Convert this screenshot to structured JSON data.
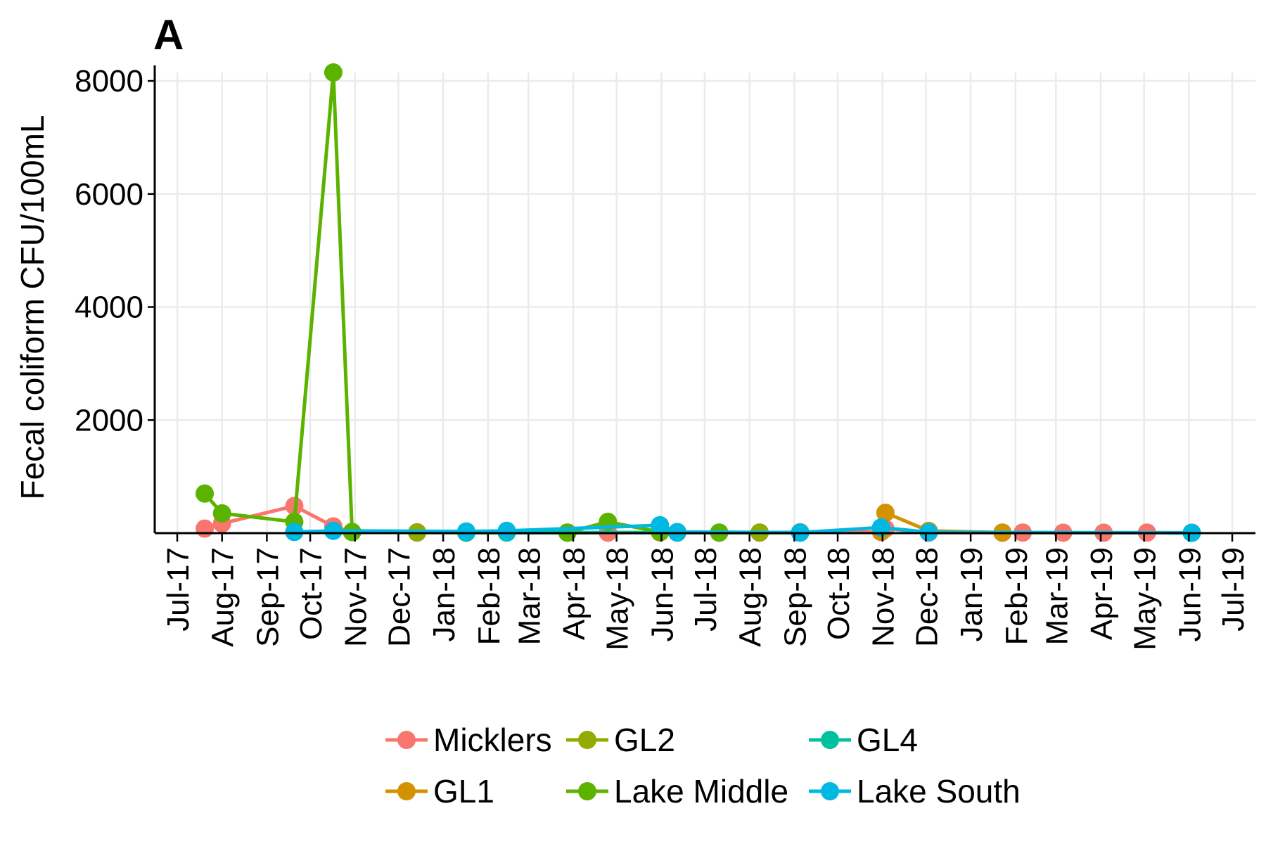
{
  "panel_label": "A",
  "chart_data": {
    "type": "line",
    "title": "",
    "xlabel": "",
    "ylabel": "Fecal coliform CFU/100mL",
    "x_ticks": [
      "Jul-17",
      "Aug-17",
      "Sep-17",
      "Oct-17",
      "Nov-17",
      "Dec-17",
      "Jan-18",
      "Feb-18",
      "Mar-18",
      "Apr-18",
      "May-18",
      "Jun-18",
      "Jul-18",
      "Aug-18",
      "Sep-18",
      "Oct-18",
      "Nov-18",
      "Dec-18",
      "Jan-19",
      "Feb-19",
      "Mar-19",
      "Apr-19",
      "May-19",
      "Jun-19",
      "Jul-19"
    ],
    "y_ticks": [
      "2000",
      "4000",
      "6000",
      "8000"
    ],
    "xlim": [
      "2017-07-01",
      "2019-07-01"
    ],
    "ylim": [
      0,
      8150
    ],
    "grid": true,
    "legend_position": "bottom",
    "series": [
      {
        "name": "Micklers",
        "color": "#F8766D",
        "points": [
          {
            "x": "2017-07-20",
            "y": 80
          },
          {
            "x": "2017-08-01",
            "y": 170
          },
          {
            "x": "2017-09-20",
            "y": 480
          },
          {
            "x": "2017-10-17",
            "y": 120
          },
          {
            "x": "2017-10-30",
            "y": 20
          },
          {
            "x": "2017-12-14",
            "y": 15
          },
          {
            "x": "2018-01-17",
            "y": 12
          },
          {
            "x": "2018-02-14",
            "y": 15
          },
          {
            "x": "2018-03-28",
            "y": 10
          },
          {
            "x": "2018-04-25",
            "y": 8
          },
          {
            "x": "2018-05-31",
            "y": 12
          },
          {
            "x": "2018-06-12",
            "y": 10
          },
          {
            "x": "2018-07-11",
            "y": 8
          },
          {
            "x": "2018-08-08",
            "y": 10
          },
          {
            "x": "2018-09-05",
            "y": 15
          },
          {
            "x": "2018-10-31",
            "y": 20
          },
          {
            "x": "2018-11-03",
            "y": 80
          },
          {
            "x": "2018-12-03",
            "y": 10
          },
          {
            "x": "2019-01-23",
            "y": 8
          },
          {
            "x": "2019-02-06",
            "y": 10
          },
          {
            "x": "2019-03-06",
            "y": 8
          },
          {
            "x": "2019-04-03",
            "y": 8
          },
          {
            "x": "2019-05-03",
            "y": 10
          },
          {
            "x": "2019-06-03",
            "y": 8
          }
        ]
      },
      {
        "name": "GL1",
        "color": "#D39200",
        "points": [
          {
            "x": "2018-10-31",
            "y": 30
          },
          {
            "x": "2018-11-03",
            "y": 360
          },
          {
            "x": "2018-12-03",
            "y": 40
          },
          {
            "x": "2019-01-23",
            "y": 10
          }
        ]
      },
      {
        "name": "GL2",
        "color": "#93AA00",
        "points": [
          {
            "x": "2017-10-30",
            "y": 20
          },
          {
            "x": "2017-12-14",
            "y": 10
          },
          {
            "x": "2018-01-17",
            "y": 8
          },
          {
            "x": "2018-03-28",
            "y": 8
          },
          {
            "x": "2018-08-08",
            "y": 10
          },
          {
            "x": "2018-09-05",
            "y": 10
          }
        ]
      },
      {
        "name": "Lake Middle",
        "color": "#5BB300",
        "points": [
          {
            "x": "2017-07-20",
            "y": 700
          },
          {
            "x": "2017-08-01",
            "y": 350
          },
          {
            "x": "2017-09-20",
            "y": 200
          },
          {
            "x": "2017-10-17",
            "y": 8150
          },
          {
            "x": "2017-10-30",
            "y": 20
          },
          {
            "x": "2018-03-28",
            "y": 10
          },
          {
            "x": "2018-04-25",
            "y": 200
          },
          {
            "x": "2018-05-31",
            "y": 20
          },
          {
            "x": "2018-07-11",
            "y": 10
          }
        ]
      },
      {
        "name": "GL4",
        "color": "#00C19F",
        "points": [
          {
            "x": "2018-01-17",
            "y": 10
          },
          {
            "x": "2018-02-14",
            "y": 10
          },
          {
            "x": "2018-06-12",
            "y": 10
          },
          {
            "x": "2018-09-05",
            "y": 10
          }
        ]
      },
      {
        "name": "Lake South",
        "color": "#00B9E3",
        "points": [
          {
            "x": "2017-09-20",
            "y": 20
          },
          {
            "x": "2017-10-17",
            "y": 40
          },
          {
            "x": "2018-01-17",
            "y": 30
          },
          {
            "x": "2018-02-14",
            "y": 40
          },
          {
            "x": "2018-05-31",
            "y": 140
          },
          {
            "x": "2018-06-12",
            "y": 20
          },
          {
            "x": "2018-09-05",
            "y": 10
          },
          {
            "x": "2018-10-31",
            "y": 100
          },
          {
            "x": "2018-12-03",
            "y": 15
          },
          {
            "x": "2019-06-03",
            "y": 5
          }
        ]
      }
    ],
    "legend_order": [
      "Micklers",
      "GL2",
      "GL4",
      "GL1",
      "Lake Middle",
      "Lake South"
    ]
  }
}
